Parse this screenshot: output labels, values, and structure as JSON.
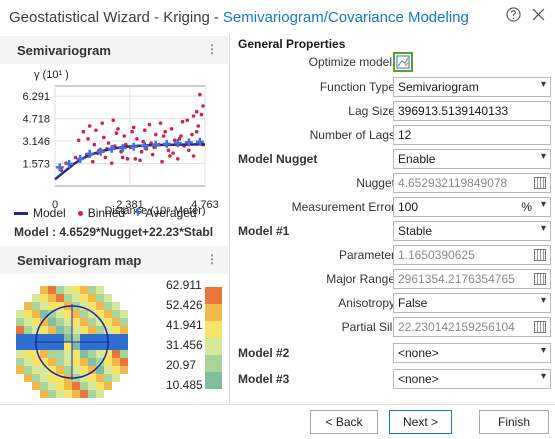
{
  "window": {
    "title_main": "Geostatistical Wizard - Kriging",
    "title_sep": "-",
    "title_sub": "Semivariogram/Covariance Modeling",
    "help_icon": "question-icon",
    "close_icon": "close-icon"
  },
  "left": {
    "chart_header": "Semivariogram",
    "map_header": "Semivariogram map",
    "ylabel": "γ (10¹ )",
    "xlabel": "Distance (10⁶ Meter)",
    "model_formula": "Model : 4.6529*Nugget+22.23*Stabl",
    "legend": {
      "model": "Model",
      "binned": "Binned",
      "averaged": "Averaged"
    },
    "map_legend": [
      "62.911",
      "52.426",
      "41.941",
      "31.456",
      "20.97",
      "10.485"
    ]
  },
  "chart_data": {
    "type": "scatter",
    "xlabel": "Distance (10⁶ Meter)",
    "ylabel": "γ (10¹ )",
    "xticks": [
      "0",
      "2.381",
      "4.763"
    ],
    "yticks": [
      "6.291",
      "4.718",
      "3.146",
      "1.573"
    ],
    "xlim": [
      0,
      4.763
    ],
    "ylim": [
      0,
      7.0
    ],
    "series": [
      {
        "name": "Model",
        "kind": "line",
        "color": "#1f2a8a",
        "x": [
          0,
          0.3,
          0.6,
          0.9,
          1.2,
          1.5,
          1.8,
          2.1,
          2.4,
          2.7,
          3.0,
          3.5,
          4.0,
          4.5,
          4.763
        ],
        "y": [
          0.47,
          1.0,
          1.55,
          1.95,
          2.25,
          2.45,
          2.6,
          2.7,
          2.78,
          2.82,
          2.85,
          2.88,
          2.9,
          2.91,
          2.91
        ]
      },
      {
        "name": "Averaged",
        "kind": "plus",
        "color": "#4a6fd0",
        "x": [
          0.15,
          0.45,
          0.8,
          1.1,
          1.45,
          1.8,
          2.15,
          2.5,
          2.85,
          3.2,
          3.55,
          3.9,
          4.25,
          4.6
        ],
        "y": [
          1.3,
          1.55,
          1.9,
          2.25,
          2.4,
          2.6,
          2.65,
          2.75,
          2.8,
          2.9,
          2.95,
          3.0,
          3.05,
          3.1
        ]
      },
      {
        "name": "Binned",
        "kind": "dot",
        "color": "#d0204c",
        "x": [
          0.2,
          0.35,
          0.5,
          0.65,
          0.75,
          0.9,
          1.0,
          1.1,
          1.2,
          1.3,
          1.4,
          1.5,
          1.6,
          1.7,
          1.8,
          1.9,
          2.0,
          2.1,
          2.2,
          2.3,
          2.4,
          2.5,
          2.6,
          2.7,
          2.8,
          2.9,
          3.0,
          3.1,
          3.2,
          3.3,
          3.4,
          3.5,
          3.6,
          3.7,
          3.8,
          3.9,
          4.0,
          4.1,
          4.2,
          4.3,
          4.4,
          4.5,
          4.6,
          4.7,
          1.25,
          1.55,
          1.85,
          2.15,
          2.45,
          2.75,
          3.05,
          3.35,
          3.65,
          3.95,
          4.25,
          4.55,
          1.05,
          1.35,
          1.65,
          1.95,
          2.25,
          2.55,
          2.85,
          3.15,
          3.45,
          3.75,
          4.05,
          4.35,
          4.65,
          4.7,
          4.5,
          4.4
        ],
        "y": [
          1.1,
          1.6,
          1.4,
          2.0,
          3.2,
          3.8,
          2.2,
          4.2,
          1.7,
          3.9,
          2.5,
          4.4,
          2.0,
          3.0,
          1.6,
          2.8,
          4.0,
          2.4,
          3.5,
          1.9,
          2.7,
          4.1,
          3.3,
          1.8,
          3.1,
          2.6,
          4.3,
          2.2,
          3.6,
          2.9,
          1.7,
          3.8,
          2.5,
          4.0,
          3.2,
          1.9,
          3.5,
          2.8,
          4.6,
          3.0,
          2.1,
          5.2,
          6.4,
          5.6,
          2.9,
          3.4,
          4.6,
          2.0,
          3.8,
          2.4,
          3.0,
          4.4,
          2.1,
          3.3,
          2.5,
          4.2,
          3.3,
          2.3,
          2.6,
          3.7,
          2.9,
          1.9,
          3.9,
          2.7,
          3.5,
          2.3,
          4.5,
          3.6,
          5.0,
          2.9,
          3.8,
          4.9
        ]
      }
    ]
  },
  "map": {
    "colors": [
      "#7fbf9f",
      "#a7d49a",
      "#d8e89a",
      "#f4e46a",
      "#f3b84a",
      "#e8763a",
      "#2f6fd0"
    ]
  },
  "form": {
    "general_properties": "General Properties",
    "optimize_model": "Optimize model",
    "optimize_icon": "optimize-icon",
    "rows": {
      "function_type": {
        "label": "Function Type",
        "value": "Semivariogram"
      },
      "lag_size": {
        "label": "Lag Size",
        "value": "396913.5139140133"
      },
      "num_lags": {
        "label": "Number of Lags",
        "value": "12"
      },
      "model_nugget": {
        "label": "Model Nugget",
        "value": "Enable"
      },
      "nugget": {
        "label": "Nugget",
        "value": "4.652932119849078"
      },
      "measurement_error": {
        "label": "Measurement Error",
        "value": "100",
        "unit": "%"
      },
      "model1": {
        "label": "Model #1",
        "value": "Stable"
      },
      "parameter": {
        "label": "Parameter",
        "value": "1.1650390625"
      },
      "major_range": {
        "label": "Major Range",
        "value": "2961354.2176354765"
      },
      "anisotropy": {
        "label": "Anisotropy",
        "value": "False"
      },
      "partial_sill": {
        "label": "Partial Sill",
        "value": "22.230142159256104"
      },
      "model2": {
        "label": "Model #2",
        "value": "<none>"
      },
      "model3": {
        "label": "Model #3",
        "value": "<none>"
      }
    }
  },
  "buttons": {
    "back": "< Back",
    "next": "Next >",
    "finish": "Finish"
  }
}
